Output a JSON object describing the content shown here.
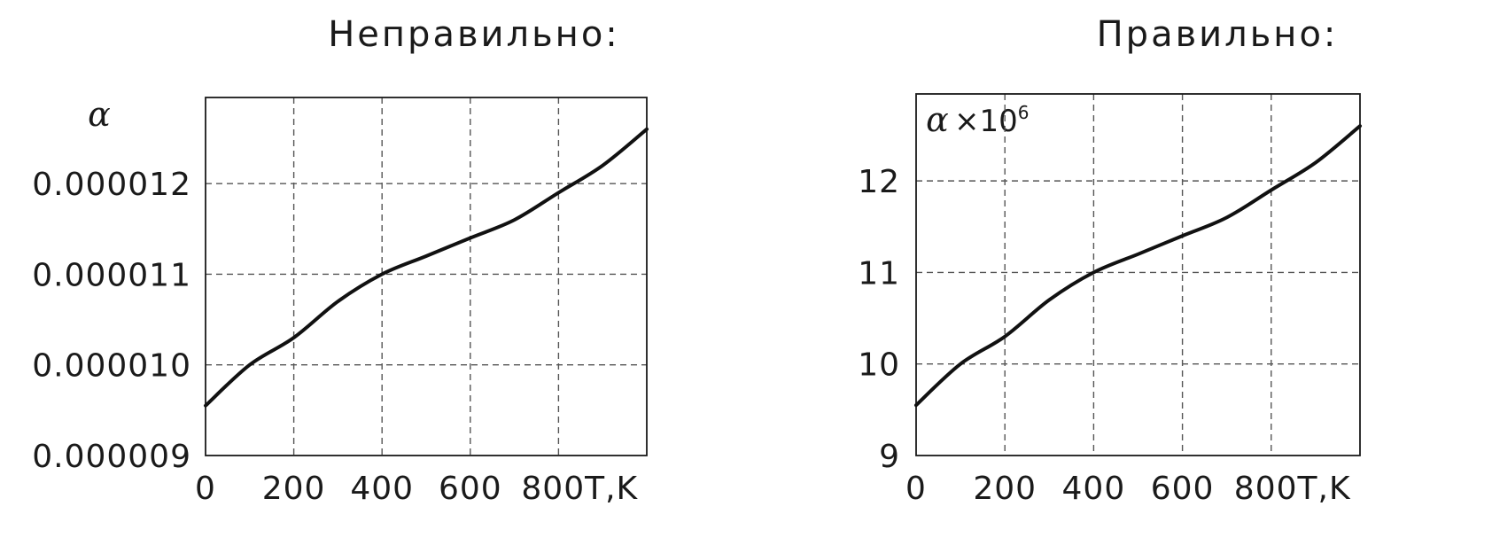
{
  "chart_data": [
    {
      "type": "line",
      "title": "Неправильно:",
      "ylabel": "α",
      "ylabel_multiplier": "",
      "xlabel": "T,K",
      "x_tick_labels": [
        "0",
        "200",
        "400",
        "600",
        "800T,K"
      ],
      "y_tick_labels": [
        "0.000009",
        "0.000010",
        "0.000011",
        "0.000012"
      ],
      "xlim": [
        0,
        1000
      ],
      "ylim": [
        9e-06,
        1.295e-05
      ],
      "grid": true,
      "series": [
        {
          "x": [
            0,
            100,
            200,
            300,
            400,
            500,
            600,
            700,
            800,
            900,
            1000
          ],
          "y": [
            9.55e-06,
            1e-05,
            1.03e-05,
            1.07e-05,
            1.1e-05,
            1.12e-05,
            1.14e-05,
            1.16e-05,
            1.19e-05,
            1.22e-05,
            1.26e-05
          ]
        }
      ]
    },
    {
      "type": "line",
      "title": "Правильно:",
      "ylabel": "α",
      "ylabel_multiplier": "×10",
      "ylabel_multiplier_exponent": "6",
      "xlabel": "T,K",
      "x_tick_labels": [
        "0",
        "200",
        "400",
        "600",
        "800T,K"
      ],
      "y_tick_labels": [
        "9",
        "10",
        "11",
        "12"
      ],
      "xlim": [
        0,
        1000
      ],
      "ylim": [
        9,
        12.95
      ],
      "grid": true,
      "series": [
        {
          "x": [
            0,
            100,
            200,
            300,
            400,
            500,
            600,
            700,
            800,
            900,
            1000
          ],
          "y": [
            9.55,
            10.0,
            10.3,
            10.7,
            11.0,
            11.2,
            11.4,
            11.6,
            11.9,
            12.2,
            12.6
          ]
        }
      ]
    }
  ]
}
